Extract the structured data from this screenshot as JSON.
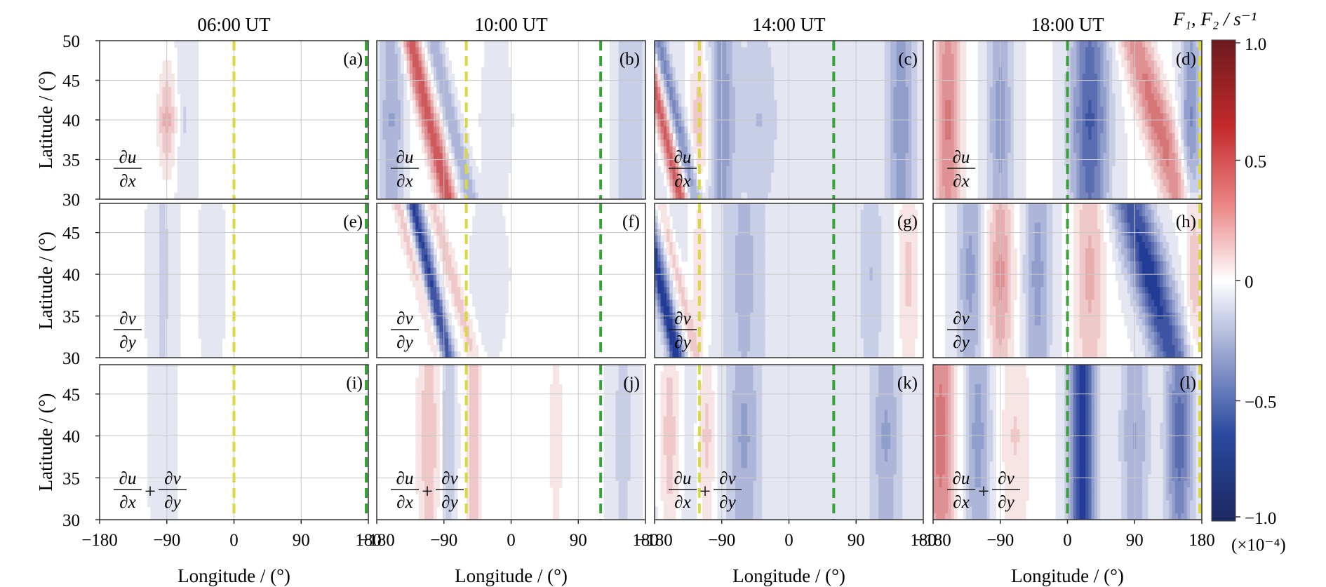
{
  "figure": {
    "column_titles": [
      "06:00 UT",
      "10:00 UT",
      "14:00 UT",
      "18:00 UT"
    ],
    "xlabel": "Longitude / (°)",
    "ylabel": "Latitude / (°)",
    "x_ticks": [
      "−180",
      "−90",
      "0",
      "90",
      "180"
    ],
    "y_ticks_top": [
      "50",
      "45",
      "40",
      "35",
      "30"
    ],
    "y_ticks_other": [
      "45",
      "40",
      "35",
      "30"
    ],
    "panel_letters": [
      "(a)",
      "(b)",
      "(c)",
      "(d)",
      "(e)",
      "(f)",
      "(g)",
      "(h)",
      "(i)",
      "(j)",
      "(k)",
      "(l)"
    ],
    "row_terms": [
      {
        "kind": "single",
        "num": "∂u",
        "den": "∂x"
      },
      {
        "kind": "single",
        "num": "∂v",
        "den": "∂y"
      },
      {
        "kind": "sum",
        "num1": "∂u",
        "den1": "∂x",
        "plus": "+",
        "num2": "∂v",
        "den2": "∂y"
      }
    ],
    "colorbar": {
      "label": "F₁, F₂ / s⁻¹",
      "ticks": [
        "1.0",
        "0.5",
        "0",
        "−0.5",
        "−1.0"
      ],
      "scale": "(×10⁻⁴)"
    }
  },
  "colors": {
    "pos_strong": "#c42a2a",
    "neg_strong": "#2a4aa0",
    "yellow_line": "#d8d840",
    "green_line": "#3aa03a",
    "grid": "#c8c8c8"
  },
  "chart_data": {
    "type": "heatmap",
    "description_rows": [
      "du/dx",
      "dv/dy",
      "du/dx + dv/dy"
    ],
    "times": [
      "06:00 UT",
      "10:00 UT",
      "14:00 UT",
      "18:00 UT"
    ],
    "xlim": [
      -180,
      180
    ],
    "ylim": [
      30,
      50
    ],
    "value_range": [
      -1.0,
      1.0
    ],
    "value_scale": "×10⁻⁴ s⁻¹",
    "terminator_longitudes": {
      "yellow": [
        0,
        -60,
        -120,
        180
      ],
      "green": [
        180,
        120,
        60,
        0
      ]
    },
    "panels": [
      {
        "id": "a",
        "row": 0,
        "col": 0,
        "bg": -0.05,
        "blobs": [
          [
            -90,
            0.0,
            12,
            0.1,
            0.45
          ],
          [
            -65,
            0.0,
            10,
            0.02,
            -0.15
          ]
        ]
      },
      {
        "id": "e",
        "row": 1,
        "col": 0,
        "bg": -0.03,
        "blobs": [
          [
            -95,
            0.0,
            18,
            0.01,
            -0.18
          ],
          [
            -30,
            -0.001,
            20,
            0.03,
            -0.08
          ]
        ]
      },
      {
        "id": "i",
        "row": 2,
        "col": 0,
        "bg": -0.03,
        "blobs": [
          [
            -95,
            0.0,
            18,
            0.02,
            -0.12
          ]
        ]
      },
      {
        "id": "b",
        "row": 0,
        "col": 1,
        "bg": 0.0,
        "blobs": [
          [
            -160,
            0.0,
            18,
            0.02,
            -0.45
          ],
          [
            -110,
            -0.25,
            12,
            0.0,
            0.8
          ],
          [
            -80,
            -0.25,
            12,
            0.0,
            -0.4
          ],
          [
            -20,
            0.0,
            22,
            0.05,
            -0.18
          ],
          [
            160,
            0.0,
            22,
            0.0,
            -0.3
          ]
        ]
      },
      {
        "id": "f",
        "row": 1,
        "col": 1,
        "bg": -0.03,
        "blobs": [
          [
            -125,
            -0.3,
            10,
            0.01,
            0.3
          ],
          [
            -110,
            -0.25,
            10,
            0.0,
            -0.95
          ],
          [
            -80,
            -0.3,
            10,
            0.02,
            0.3
          ],
          [
            -30,
            0.0,
            30,
            0.05,
            -0.08
          ]
        ]
      },
      {
        "id": "j",
        "row": 2,
        "col": 1,
        "bg": -0.04,
        "blobs": [
          [
            -110,
            0.0,
            16,
            0.03,
            0.35
          ],
          [
            -85,
            0.0,
            10,
            0.02,
            -0.3
          ],
          [
            -50,
            0.0,
            10,
            0.02,
            0.35
          ],
          [
            60,
            0.0,
            12,
            0.02,
            0.15
          ],
          [
            150,
            0.0,
            18,
            0.02,
            -0.2
          ]
        ]
      },
      {
        "id": "c",
        "row": 0,
        "col": 2,
        "bg": -0.1,
        "blobs": [
          [
            -170,
            -0.25,
            10,
            0.0,
            0.85
          ],
          [
            -150,
            -0.25,
            10,
            0.0,
            -0.5
          ],
          [
            -120,
            0.0,
            14,
            0.05,
            0.4
          ],
          [
            -90,
            0.0,
            18,
            0.02,
            -0.45
          ],
          [
            -40,
            0.0,
            25,
            0.05,
            -0.22
          ],
          [
            150,
            0.0,
            18,
            0.02,
            -0.45
          ]
        ]
      },
      {
        "id": "g",
        "row": 1,
        "col": 2,
        "bg": -0.12,
        "blobs": [
          [
            -175,
            -0.25,
            10,
            0.0,
            -0.95
          ],
          [
            -150,
            -0.25,
            8,
            0.02,
            0.35
          ],
          [
            -120,
            0.0,
            14,
            0.05,
            0.3
          ],
          [
            -60,
            0.0,
            25,
            0.02,
            -0.25
          ],
          [
            160,
            0.0,
            16,
            0.03,
            0.35
          ],
          [
            110,
            0.0,
            14,
            0.04,
            -0.2
          ]
        ]
      },
      {
        "id": "k",
        "row": 2,
        "col": 2,
        "bg": -0.12,
        "blobs": [
          [
            -160,
            0.0,
            14,
            0.03,
            0.4
          ],
          [
            -110,
            0.0,
            12,
            0.03,
            0.35
          ],
          [
            -60,
            0.0,
            20,
            0.02,
            -0.35
          ],
          [
            130,
            0.0,
            18,
            0.03,
            -0.35
          ]
        ]
      },
      {
        "id": "d",
        "row": 0,
        "col": 3,
        "bg": -0.05,
        "blobs": [
          [
            -160,
            0.0,
            18,
            0.02,
            0.65
          ],
          [
            -90,
            0.0,
            18,
            0.02,
            -0.45
          ],
          [
            30,
            0.0,
            25,
            0.02,
            -0.8
          ],
          [
            120,
            -0.3,
            22,
            0.02,
            0.7
          ],
          [
            165,
            0.0,
            14,
            0.03,
            -0.55
          ]
        ]
      },
      {
        "id": "h",
        "row": 1,
        "col": 3,
        "bg": -0.05,
        "blobs": [
          [
            -130,
            0.0,
            18,
            0.03,
            -0.45
          ],
          [
            -90,
            0.0,
            18,
            0.04,
            0.55
          ],
          [
            -40,
            0.0,
            18,
            0.02,
            -0.45
          ],
          [
            30,
            0.0,
            20,
            0.02,
            0.4
          ],
          [
            110,
            -0.3,
            25,
            0.02,
            -1.0
          ],
          [
            170,
            0.0,
            12,
            0.05,
            0.35
          ]
        ]
      },
      {
        "id": "l",
        "row": 2,
        "col": 3,
        "bg": -0.05,
        "blobs": [
          [
            -170,
            0.0,
            20,
            0.02,
            0.7
          ],
          [
            -120,
            0.0,
            18,
            0.02,
            -0.45
          ],
          [
            -70,
            0.0,
            20,
            0.02,
            0.25
          ],
          [
            20,
            0.0,
            18,
            0.0,
            -0.9
          ],
          [
            90,
            0.0,
            20,
            0.02,
            -0.4
          ],
          [
            150,
            0.0,
            18,
            0.03,
            -0.75
          ]
        ]
      }
    ]
  }
}
